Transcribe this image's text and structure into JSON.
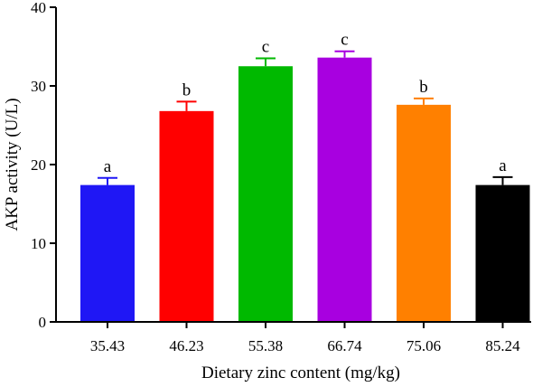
{
  "chart_data": {
    "type": "bar",
    "title": "",
    "xlabel": "Dietary zinc content (mg/kg)",
    "ylabel": "AKP activity (U/L)",
    "ylim": [
      0,
      40
    ],
    "yticks": [
      0,
      10,
      20,
      30,
      40
    ],
    "grid": false,
    "legend": "none",
    "categories": [
      "35.43",
      "46.23",
      "55.38",
      "66.74",
      "75.06",
      "85.24"
    ],
    "values": [
      17.4,
      26.8,
      32.5,
      33.6,
      27.6,
      17.4
    ],
    "errors": [
      0.9,
      1.2,
      1.0,
      0.8,
      0.8,
      1.0
    ],
    "significance": [
      "a",
      "b",
      "c",
      "c",
      "b",
      "a"
    ],
    "colors": [
      "#1f17f5",
      "#ff0000",
      "#00b900",
      "#a800e0",
      "#ff8000",
      "#000000"
    ]
  }
}
